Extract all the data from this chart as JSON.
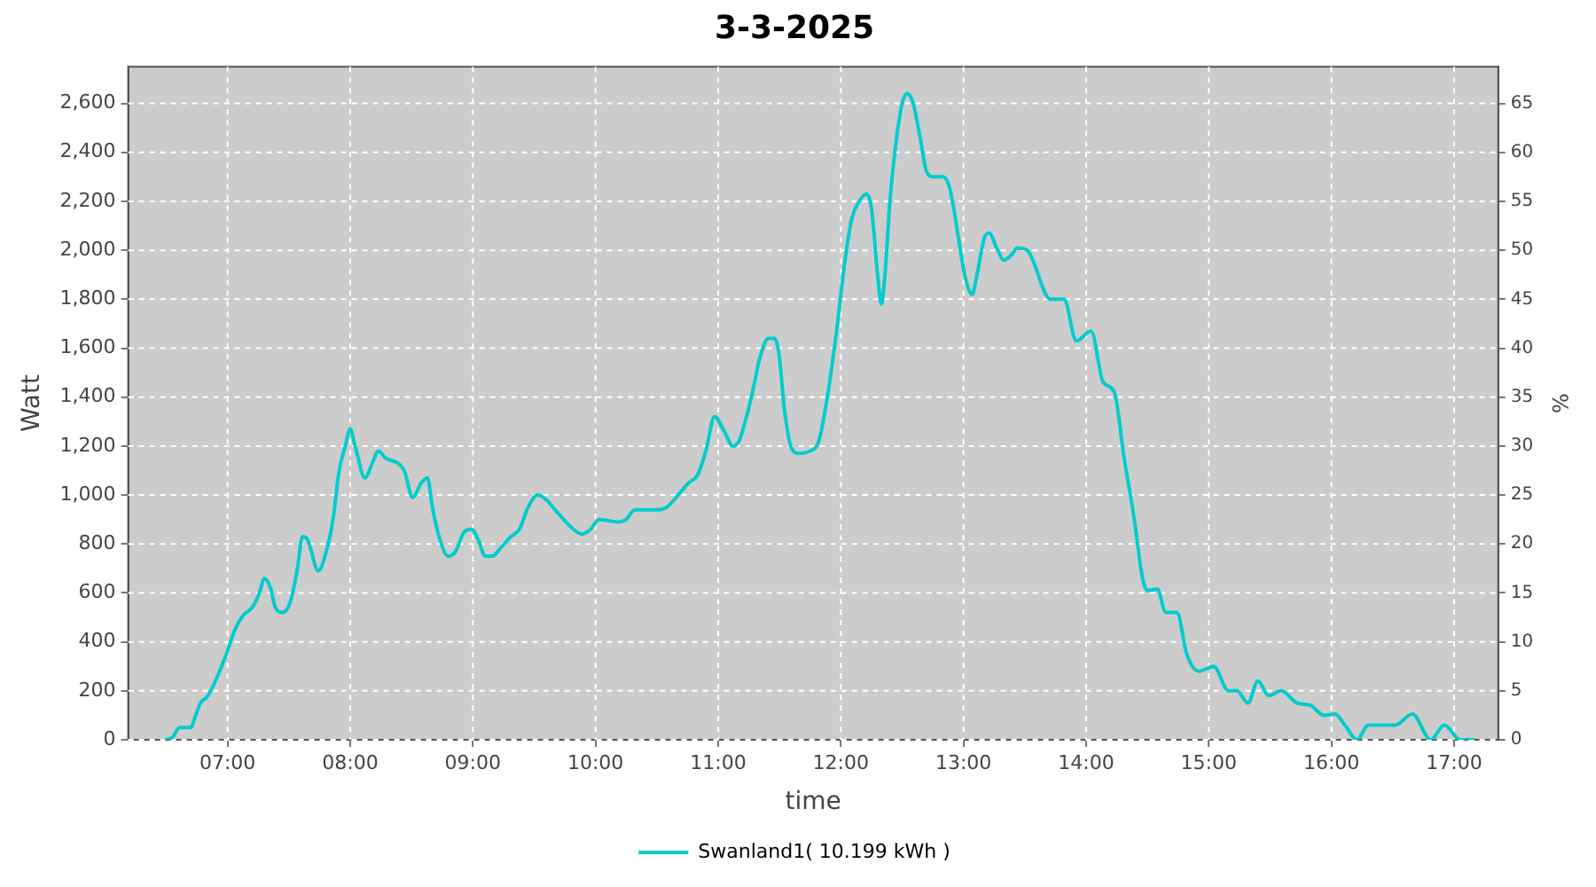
{
  "chart_data": {
    "type": "line",
    "title": "3-3-2025",
    "xlabel": "time",
    "ylabel": "Watt",
    "y2label": "%",
    "xlim": [
      6.19,
      17.36
    ],
    "xticks": [
      {
        "value": 7,
        "label": "07:00"
      },
      {
        "value": 8,
        "label": "08:00"
      },
      {
        "value": 9,
        "label": "09:00"
      },
      {
        "value": 10,
        "label": "10:00"
      },
      {
        "value": 11,
        "label": "11:00"
      },
      {
        "value": 12,
        "label": "12:00"
      },
      {
        "value": 13,
        "label": "13:00"
      },
      {
        "value": 14,
        "label": "14:00"
      },
      {
        "value": 15,
        "label": "15:00"
      },
      {
        "value": 16,
        "label": "16:00"
      },
      {
        "value": 17,
        "label": "17:00"
      }
    ],
    "ylim": [
      0,
      2750
    ],
    "yticks": [
      0,
      200,
      400,
      600,
      800,
      {
        "value": 1000,
        "label": "1,000"
      },
      {
        "value": 1200,
        "label": "1,200"
      },
      {
        "value": 1400,
        "label": "1,400"
      },
      {
        "value": 1600,
        "label": "1,600"
      },
      {
        "value": 1800,
        "label": "1,800"
      },
      {
        "value": 2000,
        "label": "2,000"
      },
      {
        "value": 2200,
        "label": "2,200"
      },
      {
        "value": 2400,
        "label": "2,400"
      },
      {
        "value": 2600,
        "label": "2,600"
      }
    ],
    "y2lim": [
      0,
      68.75
    ],
    "y2ticks": [
      0,
      5,
      10,
      15,
      20,
      25,
      30,
      35,
      40,
      45,
      50,
      55,
      60,
      65
    ],
    "grid": true,
    "legend": "bottom",
    "marker": "none",
    "line_style": "solid",
    "series": [
      {
        "name": "Swanland1( 10.199 kWh )",
        "color": "#00cccc",
        "x": [
          6.49,
          6.55,
          6.61,
          6.7,
          6.74,
          6.78,
          6.84,
          6.91,
          6.99,
          7.06,
          7.13,
          7.2,
          7.26,
          7.3,
          7.35,
          7.39,
          7.45,
          7.51,
          7.57,
          7.61,
          7.65,
          7.74,
          7.8,
          7.86,
          7.91,
          7.96,
          8.0,
          8.04,
          8.12,
          8.18,
          8.23,
          8.29,
          8.39,
          8.44,
          8.51,
          8.58,
          8.63,
          8.67,
          8.73,
          8.8,
          8.86,
          8.93,
          8.99,
          9.05,
          9.1,
          9.16,
          9.22,
          9.31,
          9.38,
          9.45,
          9.53,
          9.6,
          9.67,
          9.74,
          9.82,
          9.89,
          9.96,
          10.03,
          10.18,
          10.25,
          10.32,
          10.5,
          10.58,
          10.69,
          10.76,
          10.83,
          10.9,
          10.97,
          11.05,
          11.12,
          11.17,
          11.22,
          11.28,
          11.34,
          11.41,
          11.46,
          11.5,
          11.54,
          11.6,
          11.66,
          11.75,
          11.82,
          11.89,
          11.96,
          12.04,
          12.09,
          12.15,
          12.21,
          12.25,
          12.3,
          12.33,
          12.36,
          12.4,
          12.44,
          12.5,
          12.54,
          12.59,
          12.65,
          12.7,
          12.76,
          12.83,
          12.89,
          12.95,
          13.01,
          13.07,
          13.11,
          13.17,
          13.21,
          13.27,
          13.33,
          13.39,
          13.44,
          13.52,
          13.71,
          13.82,
          13.92,
          14.04,
          14.14,
          14.23,
          14.31,
          14.39,
          14.46,
          14.5,
          14.58,
          14.65,
          14.74,
          14.82,
          14.92,
          15.04,
          15.16,
          15.23,
          15.32,
          15.4,
          15.49,
          15.59,
          15.72,
          15.83,
          15.94,
          16.03,
          16.11,
          16.21,
          16.3,
          16.52,
          16.66,
          16.81,
          16.92,
          17.05,
          17.17
        ],
        "values": [
          0,
          10,
          50,
          50,
          100,
          150,
          180,
          250,
          350,
          450,
          510,
          540,
          600,
          660,
          620,
          540,
          520,
          560,
          700,
          830,
          820,
          690,
          760,
          900,
          1100,
          1200,
          1270,
          1200,
          1070,
          1130,
          1180,
          1150,
          1130,
          1100,
          990,
          1050,
          1070,
          950,
          820,
          750,
          770,
          850,
          860,
          810,
          750,
          750,
          780,
          830,
          860,
          950,
          1000,
          980,
          940,
          900,
          860,
          840,
          860,
          900,
          890,
          900,
          940,
          940,
          950,
          1010,
          1050,
          1080,
          1180,
          1320,
          1260,
          1200,
          1220,
          1300,
          1420,
          1560,
          1640,
          1640,
          1560,
          1350,
          1190,
          1170,
          1180,
          1220,
          1400,
          1650,
          1980,
          2130,
          2200,
          2230,
          2170,
          1900,
          1780,
          1900,
          2200,
          2400,
          2600,
          2640,
          2600,
          2450,
          2320,
          2300,
          2300,
          2250,
          2080,
          1900,
          1820,
          1900,
          2050,
          2070,
          2010,
          1960,
          1980,
          2010,
          2000,
          1800,
          1800,
          1630,
          1670,
          1460,
          1420,
          1150,
          910,
          660,
          610,
          615,
          520,
          520,
          350,
          280,
          300,
          200,
          200,
          150,
          240,
          180,
          200,
          150,
          140,
          100,
          105,
          60,
          0,
          60,
          60,
          105,
          0,
          60,
          0,
          0
        ]
      }
    ]
  }
}
